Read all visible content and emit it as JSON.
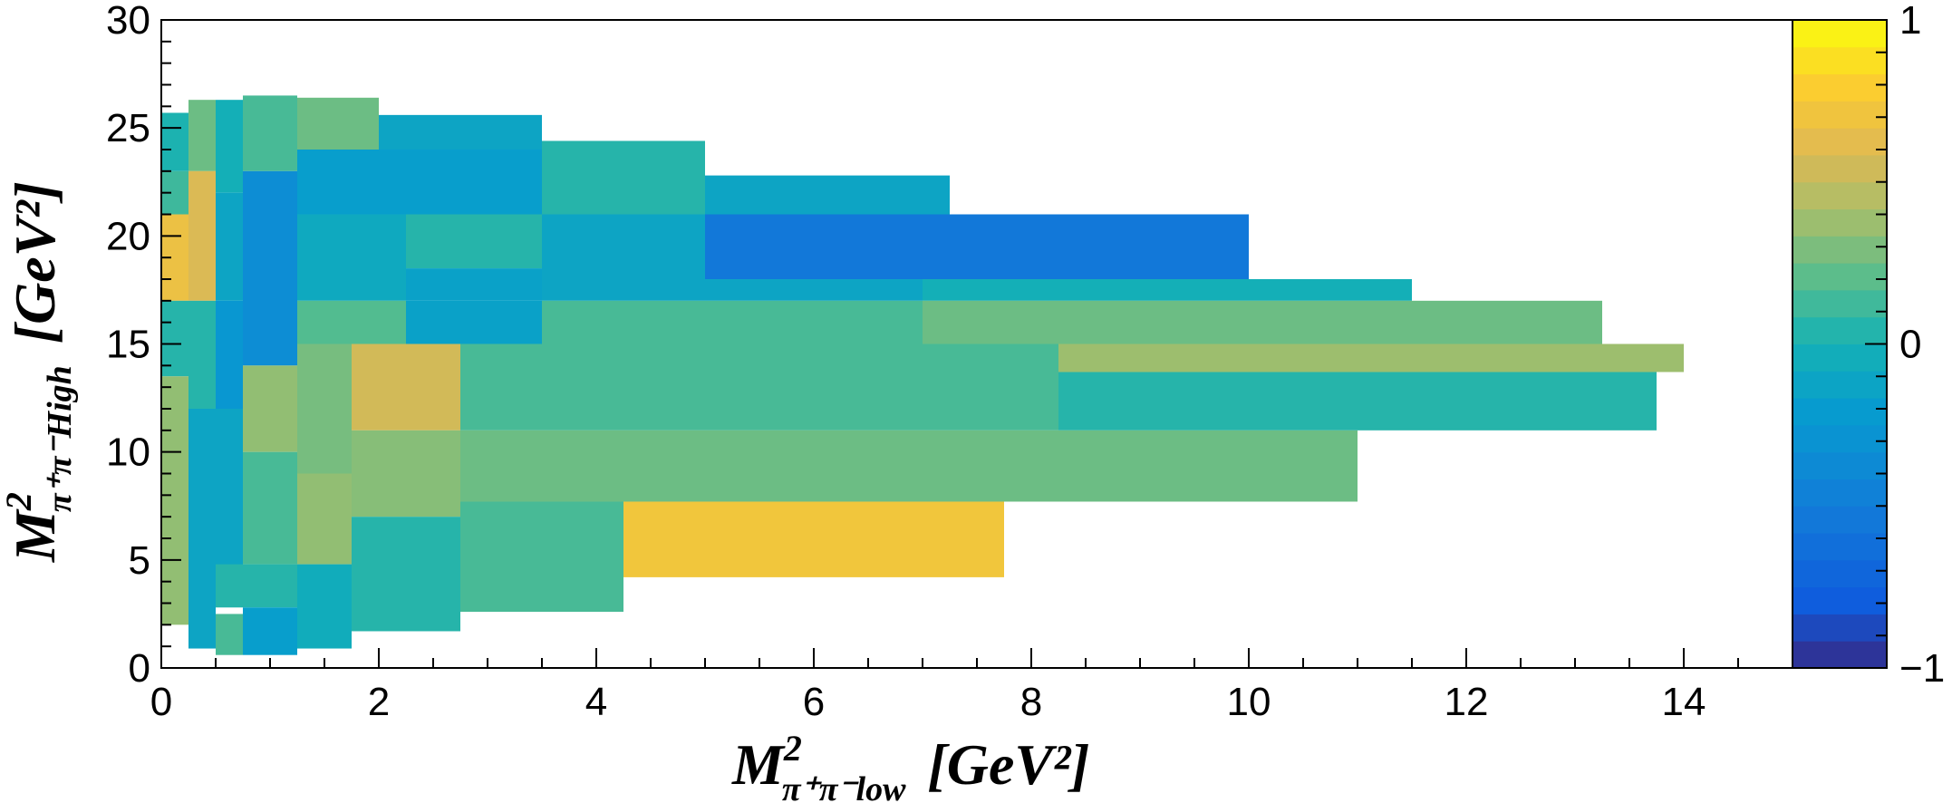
{
  "chart_data": {
    "type": "heatmap",
    "title": "",
    "xlabel": {
      "symbol": "M",
      "sup": "2",
      "sub": "π⁺π⁻low",
      "unit": "[GeV²]"
    },
    "ylabel": {
      "symbol": "M",
      "sup": "2",
      "sub": "π⁺π⁻High",
      "unit": "[GeV²]"
    },
    "xlim": [
      0,
      15
    ],
    "ylim": [
      0,
      30
    ],
    "x_ticks": [
      "0",
      "2",
      "4",
      "6",
      "8",
      "10",
      "12",
      "14"
    ],
    "y_ticks": [
      "0",
      "5",
      "10",
      "15",
      "20",
      "25",
      "30"
    ],
    "x_tick_values": [
      0,
      2,
      4,
      6,
      8,
      10,
      12,
      14
    ],
    "y_tick_values": [
      0,
      5,
      10,
      15,
      20,
      25,
      30
    ],
    "zlim": [
      -1,
      1
    ],
    "z_ticks": [
      "−1",
      "0",
      "1"
    ],
    "z_tick_values": [
      -1,
      0,
      1
    ],
    "grid": false,
    "colorbar": "right",
    "cells": [
      {
        "x0": 0,
        "x1": 0.25,
        "y0": 23,
        "y1": 25.7,
        "v": 0.02
      },
      {
        "x0": 0,
        "x1": 0.25,
        "y0": 21,
        "y1": 23,
        "v": 0.12
      },
      {
        "x0": 0,
        "x1": 0.25,
        "y0": 17,
        "y1": 21,
        "v": 0.68
      },
      {
        "x0": 0,
        "x1": 0.25,
        "y0": 13.5,
        "y1": 17,
        "v": 0.05
      },
      {
        "x0": 0,
        "x1": 0.25,
        "y0": 2,
        "y1": 13.5,
        "v": 0.35
      },
      {
        "x0": 0.25,
        "x1": 0.5,
        "y0": 23,
        "y1": 26.3,
        "v": 0.25
      },
      {
        "x0": 0.25,
        "x1": 0.5,
        "y0": 17,
        "y1": 23,
        "v": 0.58
      },
      {
        "x0": 0.25,
        "x1": 0.5,
        "y0": 12,
        "y1": 17,
        "v": 0.05
      },
      {
        "x0": 0.25,
        "x1": 0.5,
        "y0": 0.9,
        "y1": 12,
        "v": -0.12
      },
      {
        "x0": 0.5,
        "x1": 0.75,
        "y0": 22,
        "y1": 26.3,
        "v": -0.02
      },
      {
        "x0": 0.5,
        "x1": 0.75,
        "y0": 17,
        "y1": 22,
        "v": -0.12
      },
      {
        "x0": 0.5,
        "x1": 0.75,
        "y0": 12,
        "y1": 17,
        "v": -0.25
      },
      {
        "x0": 0.5,
        "x1": 0.75,
        "y0": 3,
        "y1": 12,
        "v": -0.12
      },
      {
        "x0": 0.5,
        "x1": 0.75,
        "y0": 0.6,
        "y1": 2.5,
        "v": 0.15
      },
      {
        "x0": 0.75,
        "x1": 1.25,
        "y0": 23,
        "y1": 26.5,
        "v": 0.15
      },
      {
        "x0": 0.75,
        "x1": 1.25,
        "y0": 14,
        "y1": 23,
        "v": -0.35
      },
      {
        "x0": 0.75,
        "x1": 1.25,
        "y0": 10,
        "y1": 14,
        "v": 0.35
      },
      {
        "x0": 0.75,
        "x1": 1.25,
        "y0": 4.8,
        "y1": 10,
        "v": 0.15
      },
      {
        "x0": 0.5,
        "x1": 1.25,
        "y0": 2.8,
        "y1": 4.8,
        "v": 0.05
      },
      {
        "x0": 0.75,
        "x1": 1.25,
        "y0": 0.6,
        "y1": 2.8,
        "v": -0.18
      },
      {
        "x0": 1.25,
        "x1": 2,
        "y0": 24,
        "y1": 26.4,
        "v": 0.25
      },
      {
        "x0": 1.25,
        "x1": 3.5,
        "y0": 21,
        "y1": 24,
        "v": -0.18
      },
      {
        "x0": 3.5,
        "x1": 3.5,
        "y0": 24,
        "y1": 24,
        "v": 0
      },
      {
        "x0": 2,
        "x1": 3.5,
        "y0": 24,
        "y1": 25.6,
        "v": -0.12
      },
      {
        "x0": 1.25,
        "x1": 2.25,
        "y0": 17,
        "y1": 21,
        "v": -0.08
      },
      {
        "x0": 2.25,
        "x1": 3.5,
        "y0": 18.5,
        "y1": 21,
        "v": 0.05
      },
      {
        "x0": 2.25,
        "x1": 3.5,
        "y0": 17,
        "y1": 18.5,
        "v": -0.15
      },
      {
        "x0": 1.25,
        "x1": 2.25,
        "y0": 15,
        "y1": 17,
        "v": 0.18
      },
      {
        "x0": 2.25,
        "x1": 3.5,
        "y0": 15,
        "y1": 17,
        "v": -0.15
      },
      {
        "x0": 1.25,
        "x1": 1.75,
        "y0": 9,
        "y1": 15,
        "v": 0.28
      },
      {
        "x0": 1.75,
        "x1": 2.75,
        "y0": 11,
        "y1": 15,
        "v": 0.55
      },
      {
        "x0": 1.75,
        "x1": 2.75,
        "y0": 7,
        "y1": 11,
        "v": 0.32
      },
      {
        "x0": 1.25,
        "x1": 1.75,
        "y0": 4.8,
        "y1": 9,
        "v": 0.35
      },
      {
        "x0": 1.25,
        "x1": 1.75,
        "y0": 0.9,
        "y1": 4.8,
        "v": -0.05
      },
      {
        "x0": 1.75,
        "x1": 2.75,
        "y0": 1.7,
        "y1": 7,
        "v": 0.05
      },
      {
        "x0": 3.5,
        "x1": 5,
        "y0": 21,
        "y1": 24.4,
        "v": 0.05
      },
      {
        "x0": 3.5,
        "x1": 5,
        "y0": 17,
        "y1": 21,
        "v": -0.12
      },
      {
        "x0": 5,
        "x1": 7.25,
        "y0": 21,
        "y1": 22.8,
        "v": -0.12
      },
      {
        "x0": 5,
        "x1": 10,
        "y0": 18,
        "y1": 21,
        "v": -0.55
      },
      {
        "x0": 5,
        "x1": 7,
        "y0": 17,
        "y1": 18,
        "v": -0.12
      },
      {
        "x0": 7,
        "x1": 11.5,
        "y0": 17,
        "y1": 18,
        "v": -0.02
      },
      {
        "x0": 3.5,
        "x1": 7,
        "y0": 15,
        "y1": 17,
        "v": 0.15
      },
      {
        "x0": 7,
        "x1": 13.25,
        "y0": 15,
        "y1": 17,
        "v": 0.25
      },
      {
        "x0": 2.75,
        "x1": 8.25,
        "y0": 11,
        "y1": 15,
        "v": 0.15
      },
      {
        "x0": 8.25,
        "x1": 14,
        "y0": 13.7,
        "y1": 15,
        "v": 0.38
      },
      {
        "x0": 8.25,
        "x1": 13.75,
        "y0": 11,
        "y1": 13.7,
        "v": 0.05
      },
      {
        "x0": 2.75,
        "x1": 11,
        "y0": 7.7,
        "y1": 11,
        "v": 0.25
      },
      {
        "x0": 2.75,
        "x1": 4.25,
        "y0": 2.6,
        "y1": 7.7,
        "v": 0.15
      },
      {
        "x0": 4.25,
        "x1": 7.75,
        "y0": 4.2,
        "y1": 7.7,
        "v": 0.72
      }
    ]
  }
}
